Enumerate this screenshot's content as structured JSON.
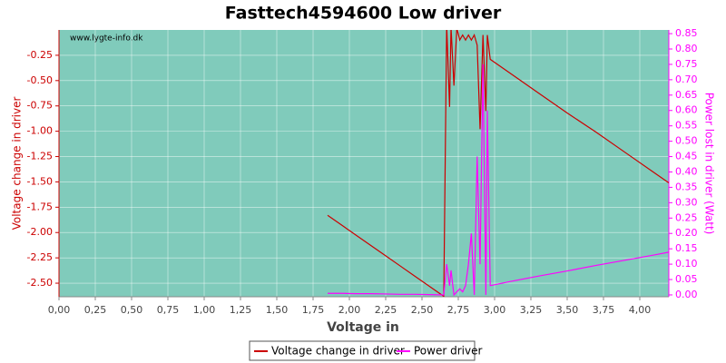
{
  "chart_data": {
    "type": "line",
    "title": "Fasttech4594600 Low driver",
    "xlabel": "Voltage in",
    "ylabel": "Voltage change in driver",
    "y2label": "Power lost in driver (Watt)",
    "watermark": "www.lygte-info.dk",
    "background": "#80cbbb",
    "grid": true,
    "legend": "bottom",
    "x": [
      1.85,
      1.95,
      2.05,
      2.15,
      2.25,
      2.35,
      2.45,
      2.55,
      2.65,
      2.67,
      2.69,
      2.7,
      2.72,
      2.74,
      2.76,
      2.78,
      2.8,
      2.82,
      2.84,
      2.86,
      2.88,
      2.9,
      2.92,
      2.94,
      2.95,
      2.97,
      3.1,
      3.3,
      3.5,
      3.7,
      3.9,
      4.1,
      4.2
    ],
    "series": [
      {
        "name": "Voltage change in driver",
        "color": "#cc0000",
        "values": [
          -1.83,
          -1.93,
          -2.03,
          -2.13,
          -2.23,
          -2.33,
          -2.43,
          -2.53,
          -2.63,
          0.05,
          -0.76,
          0.03,
          -0.55,
          0.02,
          -0.1,
          -0.05,
          -0.1,
          -0.05,
          -0.1,
          -0.05,
          -0.15,
          -0.98,
          -0.05,
          -0.8,
          -0.05,
          -0.29,
          -0.42,
          -0.62,
          -0.82,
          -1.01,
          -1.21,
          -1.41,
          -1.51
        ]
      },
      {
        "name": "Power driver",
        "color": "#ff00ff",
        "axis": "y2",
        "values": [
          0.005,
          0.005,
          0.004,
          0.004,
          0.003,
          0.002,
          0.002,
          0.001,
          0.0,
          0.1,
          0.03,
          0.08,
          0.0,
          0.01,
          0.02,
          0.01,
          0.03,
          0.1,
          0.2,
          0.0,
          0.45,
          0.1,
          0.75,
          0.0,
          0.6,
          0.03,
          0.043,
          0.061,
          0.078,
          0.096,
          0.113,
          0.13,
          0.139
        ]
      }
    ],
    "xlim": [
      0,
      4.2
    ],
    "xticks": [
      {
        "value": 0,
        "label": "0,00"
      },
      {
        "value": 0.25,
        "label": "0,25"
      },
      {
        "value": 0.5,
        "label": "0,50"
      },
      {
        "value": 0.75,
        "label": "0,75"
      },
      {
        "value": 1,
        "label": "1,00"
      },
      {
        "value": 1.25,
        "label": "1,25"
      },
      {
        "value": 1.5,
        "label": "1,50"
      },
      {
        "value": 1.75,
        "label": "1,75"
      },
      {
        "value": 2,
        "label": "2,00"
      },
      {
        "value": 2.25,
        "label": "2,25"
      },
      {
        "value": 2.5,
        "label": "2,50"
      },
      {
        "value": 2.75,
        "label": "2,75"
      },
      {
        "value": 3,
        "label": "3,00"
      },
      {
        "value": 3.25,
        "label": "3,25"
      },
      {
        "value": 3.5,
        "label": "3,50"
      },
      {
        "value": 3.75,
        "label": "3,75"
      },
      {
        "value": 4,
        "label": "4,00"
      }
    ],
    "ylim": [
      -2.634,
      0.0
    ],
    "yticks": [
      -0.25,
      {
        "value": -0.5,
        "label": "-0.50"
      },
      -0.75,
      {
        "value": -1,
        "label": "-1.00"
      },
      -1.25,
      {
        "value": -1.5,
        "label": "-1.50"
      },
      -1.75,
      {
        "value": -2,
        "label": "-2.00"
      },
      -2.25,
      {
        "value": -2.5,
        "label": "-2.50"
      }
    ],
    "y2lim": [
      -0.006,
      0.862
    ],
    "y2ticks": [
      {
        "value": 0,
        "label": "0.00"
      },
      0.05,
      {
        "value": 0.1,
        "label": "0.10"
      },
      0.15,
      {
        "value": 0.2,
        "label": "0.20"
      },
      0.25,
      {
        "value": 0.3,
        "label": "0.30"
      },
      0.35,
      {
        "value": 0.4,
        "label": "0.40"
      },
      0.45,
      {
        "value": 0.5,
        "label": "0.50"
      },
      0.55,
      {
        "value": 0.6,
        "label": "0.60"
      },
      0.65,
      {
        "value": 0.7,
        "label": "0.70"
      },
      0.75,
      {
        "value": 0.8,
        "label": "0.80"
      },
      0.85
    ]
  }
}
